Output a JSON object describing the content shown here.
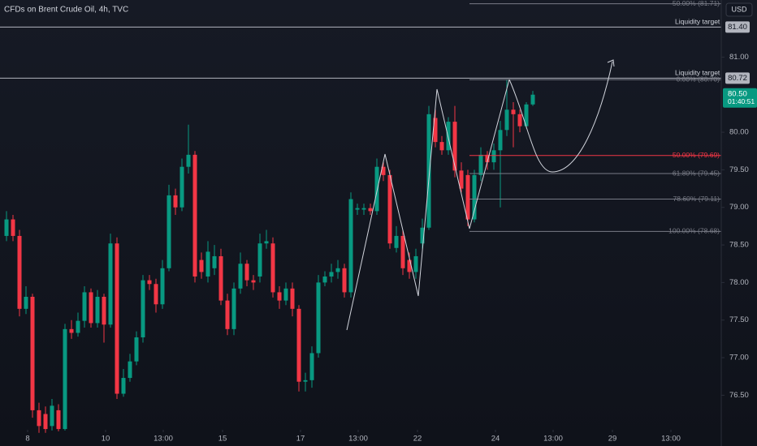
{
  "chart_data": {
    "type": "candlestick",
    "title": "CFDs on Brent Crude Oil, 4h, TVC",
    "currency": "USD",
    "up_color": "#089981",
    "down_color": "#f23645",
    "grid": false,
    "ylim": [
      76.04,
      81.76
    ],
    "yticks": [
      {
        "value": 76.5,
        "label": "76.50"
      },
      {
        "value": 77,
        "label": "77.00"
      },
      {
        "value": 77.5,
        "label": "77.50"
      },
      {
        "value": 78,
        "label": "78.00"
      },
      {
        "value": 78.5,
        "label": "78.50"
      },
      {
        "value": 79,
        "label": "79.00"
      },
      {
        "value": 79.5,
        "label": "79.50"
      },
      {
        "value": 80,
        "label": "80.00"
      },
      {
        "value": 81,
        "label": "81.00"
      }
    ],
    "xlim": [
      -1,
      110
    ],
    "xticks": [
      {
        "value": 3.25,
        "label": "8"
      },
      {
        "value": 15.25,
        "label": "10"
      },
      {
        "value": 24.125,
        "label": "13:00"
      },
      {
        "value": 33.25,
        "label": "15"
      },
      {
        "value": 45.25,
        "label": "17"
      },
      {
        "value": 54.125,
        "label": "13:00"
      },
      {
        "value": 63.25,
        "label": "22"
      },
      {
        "value": 75.25,
        "label": "24"
      },
      {
        "value": 84.125,
        "label": "13:00"
      },
      {
        "value": 93.25,
        "label": "29"
      },
      {
        "value": 102.25,
        "label": "13:00"
      }
    ],
    "open": [
      78.62,
      78.84,
      78.62,
      77.65,
      77.81,
      76.3,
      76.25,
      76.09,
      76.3,
      76.05,
      77.38,
      77.33,
      77.49,
      77.87,
      77.46,
      77.81,
      77.44,
      78.52,
      76.52,
      76.73,
      76.95,
      77.27,
      78.03,
      77.98,
      77.71,
      78.19,
      79.16,
      79.0,
      79.54,
      79.7,
      78.3,
      78.08,
      78.19,
      78.35,
      77.76,
      77.38,
      77.92,
      78.25,
      78.03,
      78.08,
      78.52,
      78.52,
      77.87,
      77.76,
      77.92,
      77.65,
      76.68,
      76.7,
      77.06,
      78.0,
      78.08,
      78.14,
      78.19,
      77.87,
      78.97,
      78.97,
      78.99,
      78.95,
      79.54,
      79.43,
      78.46,
      78.62,
      78.3,
      78.14,
      78.52,
      78.73,
      80.19,
      79.87,
      79.76,
      80.14,
      79.49,
      79.43,
      78.84,
      79.43,
      79.7,
      79.6,
      79.76,
      80.03,
      80.3,
      80.24,
      80.08,
      80.37
    ],
    "high": [
      78.95,
      78.9,
      78.7,
      77.95,
      77.85,
      76.4,
      76.35,
      76.45,
      76.38,
      77.45,
      77.5,
      77.6,
      77.95,
      77.92,
      77.9,
      77.85,
      78.65,
      78.6,
      76.85,
      77.05,
      77.35,
      78.1,
      78.1,
      78.05,
      78.3,
      79.3,
      79.25,
      79.65,
      80.1,
      79.75,
      78.4,
      78.55,
      78.5,
      78.45,
      77.85,
      78.0,
      78.4,
      78.3,
      78.1,
      78.65,
      78.7,
      78.6,
      77.95,
      78.0,
      78.0,
      77.7,
      76.8,
      77.15,
      78.1,
      78.15,
      78.25,
      78.3,
      78.25,
      79.2,
      79.05,
      79.05,
      79.05,
      79.65,
      79.6,
      79.5,
      78.75,
      78.7,
      78.4,
      78.45,
      78.85,
      80.35,
      80.3,
      79.95,
      80.2,
      80.35,
      79.6,
      79.5,
      79.5,
      79.8,
      79.75,
      79.85,
      80.15,
      80.7,
      80.4,
      80.3,
      80.4,
      80.55
    ],
    "low": [
      78.55,
      78.55,
      77.55,
      77.58,
      76.2,
      76.0,
      76.0,
      76.03,
      76.02,
      76.03,
      77.25,
      77.28,
      77.4,
      77.4,
      77.4,
      77.2,
      77.4,
      76.45,
      76.48,
      76.68,
      76.9,
      77.2,
      77.9,
      77.6,
      77.65,
      78.15,
      78.9,
      78.95,
      79.45,
      78.0,
      78.05,
      78.0,
      78.1,
      77.7,
      77.3,
      77.3,
      77.85,
      77.95,
      77.9,
      78.0,
      78.45,
      77.8,
      77.65,
      77.7,
      77.55,
      76.55,
      76.55,
      76.6,
      77.0,
      77.95,
      78.0,
      78.05,
      77.8,
      77.8,
      78.9,
      78.9,
      78.9,
      78.9,
      79.35,
      78.45,
      78.4,
      78.1,
      78.05,
      78.05,
      78.45,
      78.7,
      79.8,
      79.7,
      79.7,
      79.4,
      79.2,
      78.75,
      78.8,
      79.35,
      79.5,
      79.5,
      79.0,
      79.95,
      79.8,
      80.0,
      80.05,
      80.35
    ],
    "close": [
      78.84,
      78.62,
      77.65,
      77.81,
      76.3,
      76.09,
      76.05,
      76.36,
      76.05,
      77.38,
      77.33,
      77.49,
      77.87,
      77.46,
      77.81,
      77.44,
      78.52,
      76.52,
      76.73,
      76.95,
      77.27,
      78.03,
      77.98,
      77.71,
      78.19,
      79.16,
      79.0,
      79.54,
      79.7,
      78.08,
      78.14,
      78.41,
      78.35,
      77.76,
      77.38,
      77.92,
      78.25,
      78.03,
      78.0,
      78.52,
      78.55,
      77.87,
      77.76,
      77.92,
      77.65,
      76.68,
      76.7,
      77.06,
      78.0,
      78.08,
      78.14,
      78.19,
      77.87,
      79.11,
      78.99,
      78.99,
      78.95,
      79.54,
      79.43,
      78.52,
      78.62,
      78.19,
      78.14,
      78.35,
      78.73,
      80.24,
      79.87,
      79.76,
      80.14,
      79.49,
      79.25,
      78.84,
      79.43,
      79.7,
      79.6,
      79.76,
      80.03,
      80.3,
      80.24,
      80.08,
      80.37,
      80.5
    ],
    "last_price": {
      "value": 80.5,
      "label": "80.50",
      "countdown": "01:40:51"
    },
    "targets": [
      {
        "text": "Liquidity target",
        "value": 81.4,
        "label": "81.40"
      },
      {
        "text": "Liquidity target",
        "value": 80.72,
        "label": "80.72"
      }
    ],
    "fib_levels": [
      {
        "value": 81.71,
        "label": "-50.00% (81.71)",
        "color": "#787b86"
      },
      {
        "value": 80.7,
        "label": "0.00% (80.70)",
        "color": "#787b86"
      },
      {
        "value": 79.69,
        "label": "50.00% (79.69)",
        "color": "#f23645"
      },
      {
        "value": 79.45,
        "label": "61.80% (79.45)",
        "color": "#787b86"
      },
      {
        "value": 79.11,
        "label": "78.60% (79.11)",
        "color": "#787b86"
      },
      {
        "value": 78.68,
        "label": "100.00% (78.68)",
        "color": "#787b86"
      }
    ]
  }
}
